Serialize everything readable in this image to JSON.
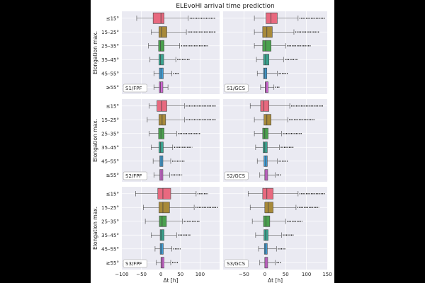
{
  "chart_data": {
    "type": "boxplot",
    "title": "ELEvoHI arrival time prediction",
    "xlabel": "Δt [h]",
    "ylabel": "Elongation max.",
    "xlim": [
      -100,
      150
    ],
    "xticks": [
      -100,
      -50,
      0,
      50,
      100,
      150
    ],
    "xticklabels": [
      [
        "−100",
        "−50",
        "0",
        "50",
        "100"
      ],
      [
        "",
        "−50",
        "0",
        "50",
        "100",
        "150"
      ]
    ],
    "grid": true,
    "categories": [
      "≤15°",
      "15–25°",
      "25–35°",
      "35–45°",
      "45–55°",
      "≥55°"
    ],
    "colors": [
      "#e8697f",
      "#a88a3a",
      "#4aa14e",
      "#3aa38f",
      "#3f9dd6",
      "#d266d6"
    ],
    "panels": [
      {
        "label": "S1/FPF",
        "boxes": [
          {
            "q1": -20,
            "med": 0,
            "q3": 8,
            "wlo": -62,
            "whi": 70,
            "fhi": 140
          },
          {
            "q1": -5,
            "med": 2,
            "q3": 15,
            "wlo": -25,
            "whi": 65,
            "fhi": 140
          },
          {
            "q1": -6,
            "med": -1,
            "q3": 8,
            "wlo": -32,
            "whi": 48,
            "fhi": 120
          },
          {
            "q1": -5,
            "med": -1,
            "q3": 7,
            "wlo": -28,
            "whi": 38,
            "fhi": 75
          },
          {
            "q1": -4,
            "med": 0,
            "q3": 6,
            "wlo": -18,
            "whi": 28,
            "fhi": 48
          },
          {
            "q1": -4,
            "med": -1,
            "q3": 5,
            "wlo": -18,
            "whi": 18,
            "fhi": 18
          }
        ]
      },
      {
        "label": "S1/GCS",
        "boxes": [
          {
            "q1": 3,
            "med": 15,
            "q3": 30,
            "wlo": -25,
            "whi": 80,
            "fhi": 145
          },
          {
            "q1": -5,
            "med": 5,
            "q3": 18,
            "wlo": -25,
            "whi": 70,
            "fhi": 130
          },
          {
            "q1": -5,
            "med": 2,
            "q3": 15,
            "wlo": -25,
            "whi": 50,
            "fhi": 110
          },
          {
            "q1": -3,
            "med": 2,
            "q3": 10,
            "wlo": -20,
            "whi": 45,
            "fhi": 80
          },
          {
            "q1": -3,
            "med": 0,
            "q3": 5,
            "wlo": -18,
            "whi": 30,
            "fhi": 55
          },
          {
            "q1": 1,
            "med": 3,
            "q3": 8,
            "wlo": -10,
            "whi": 22,
            "fhi": 35
          }
        ]
      },
      {
        "label": "S2/FPF",
        "boxes": [
          {
            "q1": -10,
            "med": 2,
            "q3": 15,
            "wlo": -30,
            "whi": 60,
            "fhi": 140
          },
          {
            "q1": -5,
            "med": 3,
            "q3": 12,
            "wlo": -35,
            "whi": 60,
            "fhi": 140
          },
          {
            "q1": -6,
            "med": 0,
            "q3": 8,
            "wlo": -30,
            "whi": 40,
            "fhi": 100
          },
          {
            "q1": -5,
            "med": -1,
            "q3": 6,
            "wlo": -25,
            "whi": 30,
            "fhi": 80
          },
          {
            "q1": -3,
            "med": 0,
            "q3": 5,
            "wlo": -20,
            "whi": 25,
            "fhi": 60
          },
          {
            "q1": -3,
            "med": 0,
            "q3": 5,
            "wlo": -18,
            "whi": 22,
            "fhi": 55
          }
        ]
      },
      {
        "label": "S2/GCS",
        "boxes": [
          {
            "q1": -10,
            "med": -2,
            "q3": 10,
            "wlo": -35,
            "whi": 60,
            "fhi": 140
          },
          {
            "q1": -2,
            "med": 5,
            "q3": 15,
            "wlo": -25,
            "whi": 55,
            "fhi": 120
          },
          {
            "q1": -5,
            "med": 0,
            "q3": 8,
            "wlo": -25,
            "whi": 40,
            "fhi": 90
          },
          {
            "q1": -4,
            "med": 0,
            "q3": 6,
            "wlo": -22,
            "whi": 35,
            "fhi": 70
          },
          {
            "q1": -2,
            "med": 2,
            "q3": 6,
            "wlo": -18,
            "whi": 30,
            "fhi": 55
          },
          {
            "q1": 0,
            "med": 3,
            "q3": 7,
            "wlo": -12,
            "whi": 25,
            "fhi": 40
          }
        ]
      },
      {
        "label": "S3/FPF",
        "boxes": [
          {
            "q1": -8,
            "med": 5,
            "q3": 25,
            "wlo": -65,
            "whi": 90,
            "fhi": 120
          },
          {
            "q1": -5,
            "med": 5,
            "q3": 22,
            "wlo": -45,
            "whi": 85,
            "fhi": 145
          },
          {
            "q1": -4,
            "med": 3,
            "q3": 14,
            "wlo": -40,
            "whi": 55,
            "fhi": 100
          },
          {
            "q1": -2,
            "med": 2,
            "q3": 8,
            "wlo": -25,
            "whi": 40,
            "fhi": 75
          },
          {
            "q1": -2,
            "med": 1,
            "q3": 6,
            "wlo": -15,
            "whi": 28,
            "fhi": 50
          },
          {
            "q1": 0,
            "med": 3,
            "q3": 8,
            "wlo": -12,
            "whi": 25,
            "fhi": 45
          }
        ]
      },
      {
        "label": "S3/GCS",
        "boxes": [
          {
            "q1": -5,
            "med": 5,
            "q3": 20,
            "wlo": -40,
            "whi": 80,
            "fhi": 145
          },
          {
            "q1": 0,
            "med": 8,
            "q3": 20,
            "wlo": -35,
            "whi": 75,
            "fhi": 130
          },
          {
            "q1": -3,
            "med": 3,
            "q3": 12,
            "wlo": -30,
            "whi": 50,
            "fhi": 90
          },
          {
            "q1": -2,
            "med": 2,
            "q3": 8,
            "wlo": -22,
            "whi": 40,
            "fhi": 70
          },
          {
            "q1": -1,
            "med": 2,
            "q3": 6,
            "wlo": -15,
            "whi": 28,
            "fhi": 50
          },
          {
            "q1": 0,
            "med": 3,
            "q3": 7,
            "wlo": -12,
            "whi": 25,
            "fhi": 40
          }
        ]
      }
    ]
  }
}
